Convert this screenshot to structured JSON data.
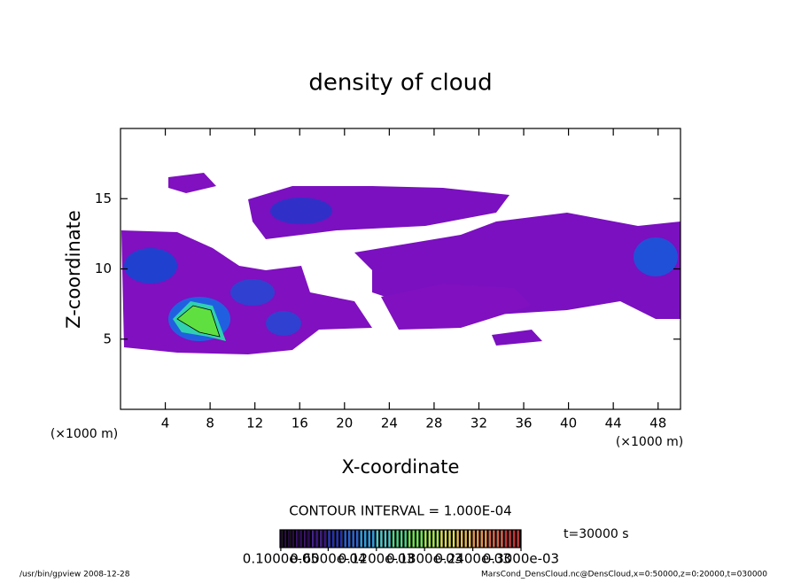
{
  "chart_data": {
    "type": "contour",
    "title": "density of cloud",
    "x_label": "X-coordinate",
    "y_label": "Z-coordinate",
    "x_unit": "(×1000 m)",
    "y_unit": "(×1000 m)",
    "xlim": [
      0,
      50
    ],
    "ylim": [
      0,
      20
    ],
    "xticks": [
      4,
      8,
      12,
      16,
      20,
      24,
      28,
      32,
      36,
      40,
      44,
      48
    ],
    "yticks": [
      5,
      10,
      15
    ],
    "contour_interval": "CONTOUR INTERVAL = 1.000E-04",
    "time": "t=30000 s",
    "colorbar": {
      "lim": [
        0,
        0.0003
      ],
      "colors": [
        "#1a0033",
        "#2a0060",
        "#3a1090",
        "#2030c0",
        "#2060e0",
        "#20a0f0",
        "#40d0d0",
        "#40e080",
        "#60f040",
        "#a0f040",
        "#e0e040",
        "#f0c040",
        "#f09040",
        "#e06040",
        "#d03030"
      ],
      "ticks": [
        {
          "value": 1e-06,
          "label": "0.1000e-05"
        },
        {
          "value": 6e-05,
          "label": "0.6000e-04"
        },
        {
          "value": 0.00012,
          "label": "0.1200e-03"
        },
        {
          "value": 0.00018,
          "label": "0.1800e-03"
        },
        {
          "value": 0.00024,
          "label": "0.2400e-03"
        },
        {
          "value": 0.0003,
          "label": "0.3000e-03"
        }
      ]
    },
    "footer_left": "/usr/bin/gpview  2008-12-28",
    "footer_right": "MarsCond_DensCloud.nc@DensCloud,x=0:50000,z=0:20000,t=030000"
  }
}
